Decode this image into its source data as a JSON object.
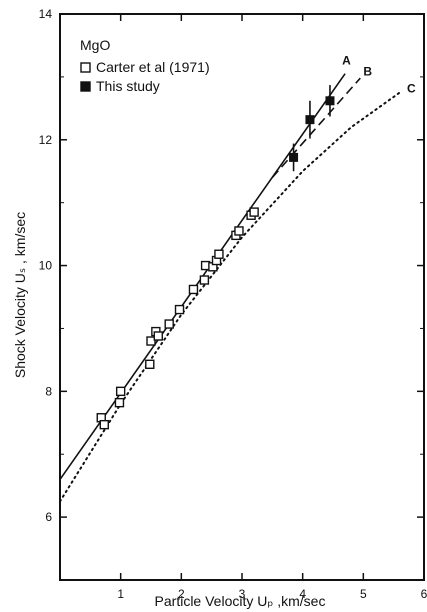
{
  "chart_data": {
    "type": "scatter",
    "xlabel": "Particle Velocity Uₚ ,km/sec",
    "ylabel": "Shock Velocity Uₛ , km/sec",
    "xlim": [
      0,
      6
    ],
    "ylim": [
      5,
      14
    ],
    "x_ticks": [
      1,
      2,
      3,
      4,
      5,
      6
    ],
    "y_ticks": [
      6,
      8,
      10,
      12,
      14
    ],
    "legend": {
      "title": "MgO",
      "position": "top-left",
      "entries": [
        {
          "label": "Carter et al (1971)",
          "marker": "open-square"
        },
        {
          "label": "This study",
          "marker": "filled-square"
        }
      ]
    },
    "series": [
      {
        "name": "Carter et al (1971)",
        "marker": "open-square",
        "points": [
          [
            0.68,
            7.58
          ],
          [
            0.73,
            7.47
          ],
          [
            1.0,
            8.0
          ],
          [
            0.98,
            7.82
          ],
          [
            1.48,
            8.43
          ],
          [
            1.5,
            8.8
          ],
          [
            1.58,
            8.95
          ],
          [
            1.62,
            8.88
          ],
          [
            1.8,
            9.07
          ],
          [
            1.97,
            9.3
          ],
          [
            2.2,
            9.62
          ],
          [
            2.38,
            9.77
          ],
          [
            2.4,
            10.0
          ],
          [
            2.52,
            9.98
          ],
          [
            2.58,
            10.08
          ],
          [
            2.62,
            10.18
          ],
          [
            2.9,
            10.48
          ],
          [
            2.95,
            10.55
          ],
          [
            3.15,
            10.8
          ],
          [
            3.2,
            10.85
          ]
        ]
      },
      {
        "name": "This study",
        "marker": "filled-square",
        "points": [
          {
            "x": 3.85,
            "y": 11.72,
            "err": 0.22
          },
          {
            "x": 4.12,
            "y": 12.32,
            "err": 0.3
          },
          {
            "x": 4.45,
            "y": 12.62,
            "err": 0.25
          }
        ]
      }
    ],
    "curves": [
      {
        "name": "A",
        "style": "solid",
        "points": [
          [
            0,
            6.6
          ],
          [
            4.7,
            13.05
          ]
        ]
      },
      {
        "name": "B",
        "style": "dashed",
        "points": [
          [
            3.5,
            11.4
          ],
          [
            4.95,
            12.98
          ]
        ]
      },
      {
        "name": "C",
        "style": "dotted",
        "points": [
          [
            0,
            6.25
          ],
          [
            1,
            7.8
          ],
          [
            2,
            9.22
          ],
          [
            3,
            10.45
          ],
          [
            4,
            11.5
          ],
          [
            4.8,
            12.2
          ],
          [
            5.6,
            12.75
          ]
        ]
      }
    ],
    "curve_labels": [
      {
        "text": "A",
        "x": 4.65,
        "y": 13.2
      },
      {
        "text": "B",
        "x": 5.0,
        "y": 13.02
      },
      {
        "text": "C",
        "x": 5.72,
        "y": 12.75
      }
    ],
    "grid": false
  }
}
